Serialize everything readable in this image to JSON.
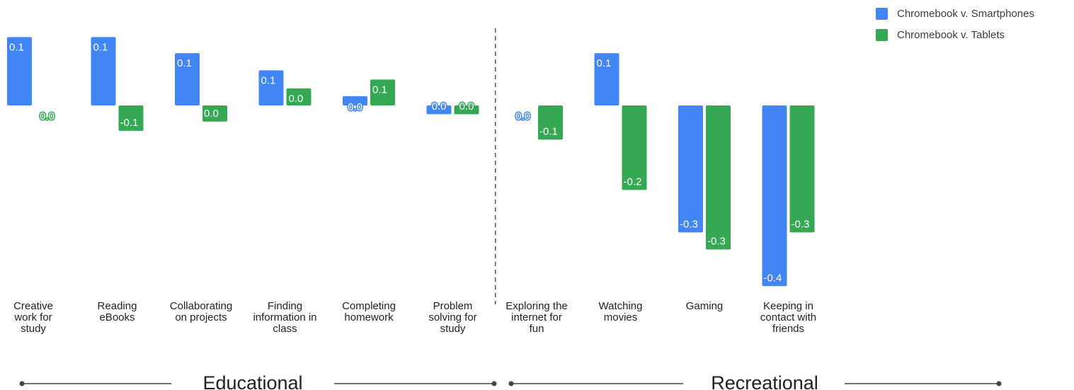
{
  "chart_data": {
    "type": "bar",
    "categories": [
      "Creative work for study",
      "Reading eBooks",
      "Collaborating on projects",
      "Finding information in class",
      "Completing homework",
      "Problem solving for study",
      "Exploring the internet for fun",
      "Watching movies",
      "Gaming",
      "Keeping in contact with friends"
    ],
    "category_lines": [
      [
        "Creative",
        "work for",
        "study"
      ],
      [
        "Reading",
        "eBooks"
      ],
      [
        "Collaborating",
        "on projects"
      ],
      [
        "Finding",
        "information in",
        "class"
      ],
      [
        "Completing",
        "homework"
      ],
      [
        "Problem",
        "solving for",
        "study"
      ],
      [
        "Exploring the",
        "internet for",
        "fun"
      ],
      [
        "Watching",
        "movies"
      ],
      [
        "Gaming"
      ],
      [
        "Keeping in",
        "contact with",
        "friends"
      ]
    ],
    "series": [
      {
        "name": "Chromebook v. Smartphones",
        "color": "#4285f4",
        "values": [
          0.14,
          0.14,
          0.107,
          0.072,
          0.019,
          -0.018,
          0.0,
          0.107,
          -0.26,
          -0.37
        ],
        "labels": [
          "0.1",
          "0.1",
          "0.1",
          "0.1",
          "0.0",
          "0.0",
          "0.0",
          "0.1",
          "-0.3",
          "-0.4"
        ]
      },
      {
        "name": "Chromebook v. Tablets",
        "color": "#34a853",
        "values": [
          0.0,
          -0.052,
          -0.033,
          0.035,
          0.053,
          -0.018,
          -0.07,
          -0.173,
          -0.295,
          -0.26
        ],
        "labels": [
          "0.0",
          "-0.1",
          "0.0",
          "0.0",
          "0.1",
          "0.0",
          "-0.1",
          "-0.2",
          "-0.3",
          "-0.3"
        ]
      }
    ],
    "groups": [
      {
        "label": "Educational",
        "categories": 6
      },
      {
        "label": "Recreational",
        "categories": 4
      }
    ],
    "legend_position": "top-right",
    "grid": false
  }
}
